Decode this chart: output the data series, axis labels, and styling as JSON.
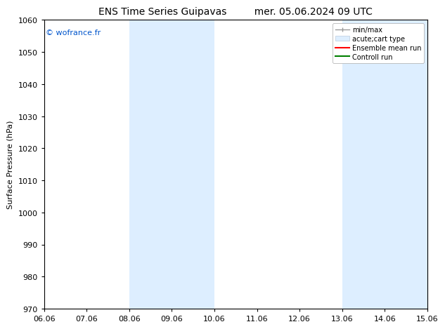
{
  "title_left": "ENS Time Series Guipavas",
  "title_right": "mer. 05.06.2024 09 UTC",
  "ylabel": "Surface Pressure (hPa)",
  "ylim": [
    970,
    1060
  ],
  "yticks": [
    970,
    980,
    990,
    1000,
    1010,
    1020,
    1030,
    1040,
    1050,
    1060
  ],
  "xtick_labels": [
    "06.06",
    "07.06",
    "08.06",
    "09.06",
    "10.06",
    "11.06",
    "12.06",
    "13.06",
    "14.06",
    "15.06"
  ],
  "xtick_positions": [
    0,
    1,
    2,
    3,
    4,
    5,
    6,
    7,
    8,
    9
  ],
  "shaded_bands": [
    {
      "x_start": 2.0,
      "x_end": 4.0
    },
    {
      "x_start": 7.0,
      "x_end": 9.0
    }
  ],
  "shaded_color": "#ddeeff",
  "watermark": "© wofrance.fr",
  "watermark_color": "#0055cc",
  "legend_entries": [
    {
      "label": "min/max"
    },
    {
      "label": "acute;cart type"
    },
    {
      "label": "Ensemble mean run"
    },
    {
      "label": "Controll run"
    }
  ],
  "bg_color": "#ffffff",
  "grid_color": "#dddddd",
  "font_size": 8,
  "title_fontsize": 10
}
